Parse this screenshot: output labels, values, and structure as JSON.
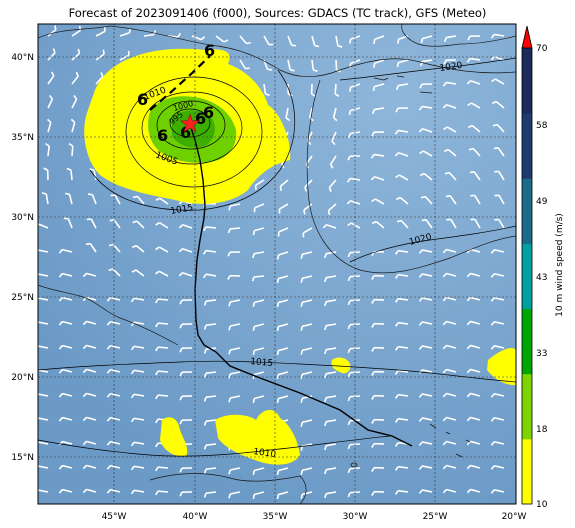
{
  "title": "Forecast of 2023091406 (f000), Sources: GDACS (TC track), GFS (Meteo)",
  "lon_labels": [
    "45°W",
    "40°W",
    "35°W",
    "30°W",
    "25°W",
    "20°W"
  ],
  "lat_labels": [
    "40°N",
    "35°N",
    "30°N",
    "25°N",
    "20°N",
    "15°N"
  ],
  "isobar_labels": [
    "1010",
    "1005",
    "1000",
    "995",
    "1015",
    "1020",
    "1020",
    "1015",
    "1010"
  ],
  "colorbar": {
    "label": "10 m wind speed (m/s)",
    "ticks": [
      "10",
      "18",
      "33",
      "43",
      "49",
      "58",
      "70"
    ],
    "colors": [
      "#ffff00",
      "#7fd400",
      "#00a600",
      "#00a0a0",
      "#1a6a8a",
      "#1f3a6e",
      "#1a2a5a"
    ],
    "extend_color": "#ff0000"
  },
  "ocean_color": "#6f9fcb",
  "forecast_marker": "red-star"
}
